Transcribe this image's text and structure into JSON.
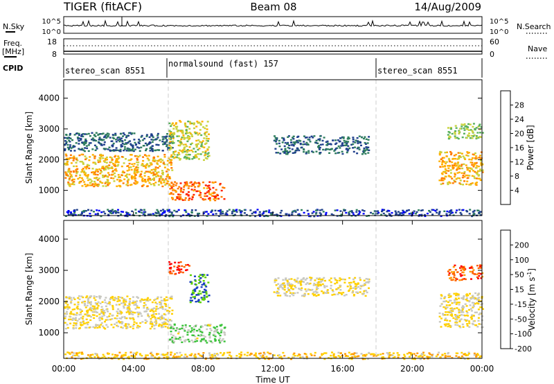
{
  "header": {
    "radar": "TIGER (fitACF)",
    "beam": "Beam 08",
    "date": "14/Aug/2009"
  },
  "nsky_panel": {
    "left_label": "N.Sky",
    "left_ticks": [
      "10^5",
      "10^0"
    ],
    "right_ticks": [
      "10^5",
      "10^0"
    ],
    "right_label": "N.Search"
  },
  "freq_panel": {
    "left_label_line1": "Freq.",
    "left_label_line2": "[MHz]",
    "left_ticks": [
      "18",
      "8"
    ],
    "right_ticks": [
      "60",
      "0"
    ],
    "right_label": "Nave"
  },
  "cpid_panel": {
    "label": "CPID",
    "segments": [
      {
        "text": "stereo_scan 8551",
        "start_h": 0,
        "end_h": 6
      },
      {
        "text": "normalsound (fast) 157",
        "start_h": 6,
        "end_h": 18
      },
      {
        "text": "stereo_scan 8551",
        "start_h": 18,
        "end_h": 24
      }
    ]
  },
  "power_panel": {
    "ylabel": "Slant Range [km]",
    "yticks": [
      "4000",
      "3000",
      "2000",
      "1000"
    ],
    "colorbar_label": "Power [dB]",
    "colorbar_ticks": [
      "28",
      "24",
      "20",
      "16",
      "12",
      "8",
      "4"
    ]
  },
  "velocity_panel": {
    "ylabel": "Slant Range [km]",
    "yticks": [
      "4000",
      "3000",
      "2000",
      "1000"
    ],
    "colorbar_label": "Velocity [m s",
    "colorbar_label_sup": "-1",
    "colorbar_label_end": "]",
    "colorbar_ticks": [
      "200",
      "100",
      "50",
      "15",
      "-15",
      "-50",
      "-100",
      "-200"
    ]
  },
  "x_axis": {
    "tick_labels": [
      "00:00",
      "04:00",
      "08:00",
      "12:00",
      "16:00",
      "20:00",
      "00:00"
    ],
    "xlabel": "Time UT"
  },
  "colors": {
    "power_scale": [
      "#0000ff",
      "#20408c",
      "#2e7d5e",
      "#58b05c",
      "#c8d23c",
      "#ffb000",
      "#ff7a00",
      "#ff2000"
    ],
    "velocity_scale": [
      "#ff0000",
      "#ff6000",
      "#ff9a00",
      "#ffd000",
      "#c8c8c0",
      "#3ac23a",
      "#5cd000",
      "#1a3fbf"
    ]
  },
  "chart_data": [
    {
      "type": "heatmap",
      "title": "Power",
      "xlabel": "Time UT",
      "ylabel": "Slant Range [km]",
      "xlim_hours": [
        0,
        24
      ],
      "ylim_km": [
        180,
        4600
      ],
      "zlabel": "Power [dB]",
      "zlim": [
        0,
        32
      ],
      "regions": [
        {
          "t0": 0.0,
          "t1": 6.2,
          "r0": 1150,
          "r1": 2200,
          "value": 22
        },
        {
          "t0": 0.0,
          "t1": 6.2,
          "r0": 2300,
          "r1": 2900,
          "value": 8
        },
        {
          "t0": 6.0,
          "t1": 9.2,
          "r0": 700,
          "r1": 1300,
          "value": 27
        },
        {
          "t0": 6.0,
          "t1": 8.3,
          "r0": 2000,
          "r1": 3300,
          "value": 18
        },
        {
          "t0": 12.0,
          "t1": 17.5,
          "r0": 2200,
          "r1": 2800,
          "value": 8
        },
        {
          "t0": 21.5,
          "t1": 24.0,
          "r0": 1200,
          "r1": 2300,
          "value": 22
        },
        {
          "t0": 22.0,
          "t1": 24.0,
          "r0": 2700,
          "r1": 3200,
          "value": 16
        },
        {
          "t0": 0.0,
          "t1": 24.0,
          "r0": 180,
          "r1": 400,
          "value": 6
        }
      ]
    },
    {
      "type": "heatmap",
      "title": "Velocity",
      "xlabel": "Time UT",
      "ylabel": "Slant Range [km]",
      "xlim_hours": [
        0,
        24
      ],
      "ylim_km": [
        180,
        4600
      ],
      "zlabel": "Velocity [m s-1]",
      "zlim": [
        -250,
        250
      ],
      "regions": [
        {
          "t0": 0.0,
          "t1": 6.2,
          "r0": 1150,
          "r1": 2200,
          "value": 0
        },
        {
          "t0": 6.0,
          "t1": 9.2,
          "r0": 700,
          "r1": 1300,
          "value": 60
        },
        {
          "t0": 6.0,
          "t1": 7.2,
          "r0": 2900,
          "r1": 3300,
          "value": -200
        },
        {
          "t0": 7.2,
          "t1": 8.3,
          "r0": 2000,
          "r1": 2900,
          "value": 200
        },
        {
          "t0": 12.0,
          "t1": 17.5,
          "r0": 2200,
          "r1": 2800,
          "value": 0
        },
        {
          "t0": 21.5,
          "t1": 24.0,
          "r0": 1200,
          "r1": 2300,
          "value": 0
        },
        {
          "t0": 22.0,
          "t1": 24.0,
          "r0": 2700,
          "r1": 3200,
          "value": -150
        },
        {
          "t0": 0.0,
          "t1": 24.0,
          "r0": 180,
          "r1": 400,
          "value": -40
        }
      ]
    }
  ]
}
